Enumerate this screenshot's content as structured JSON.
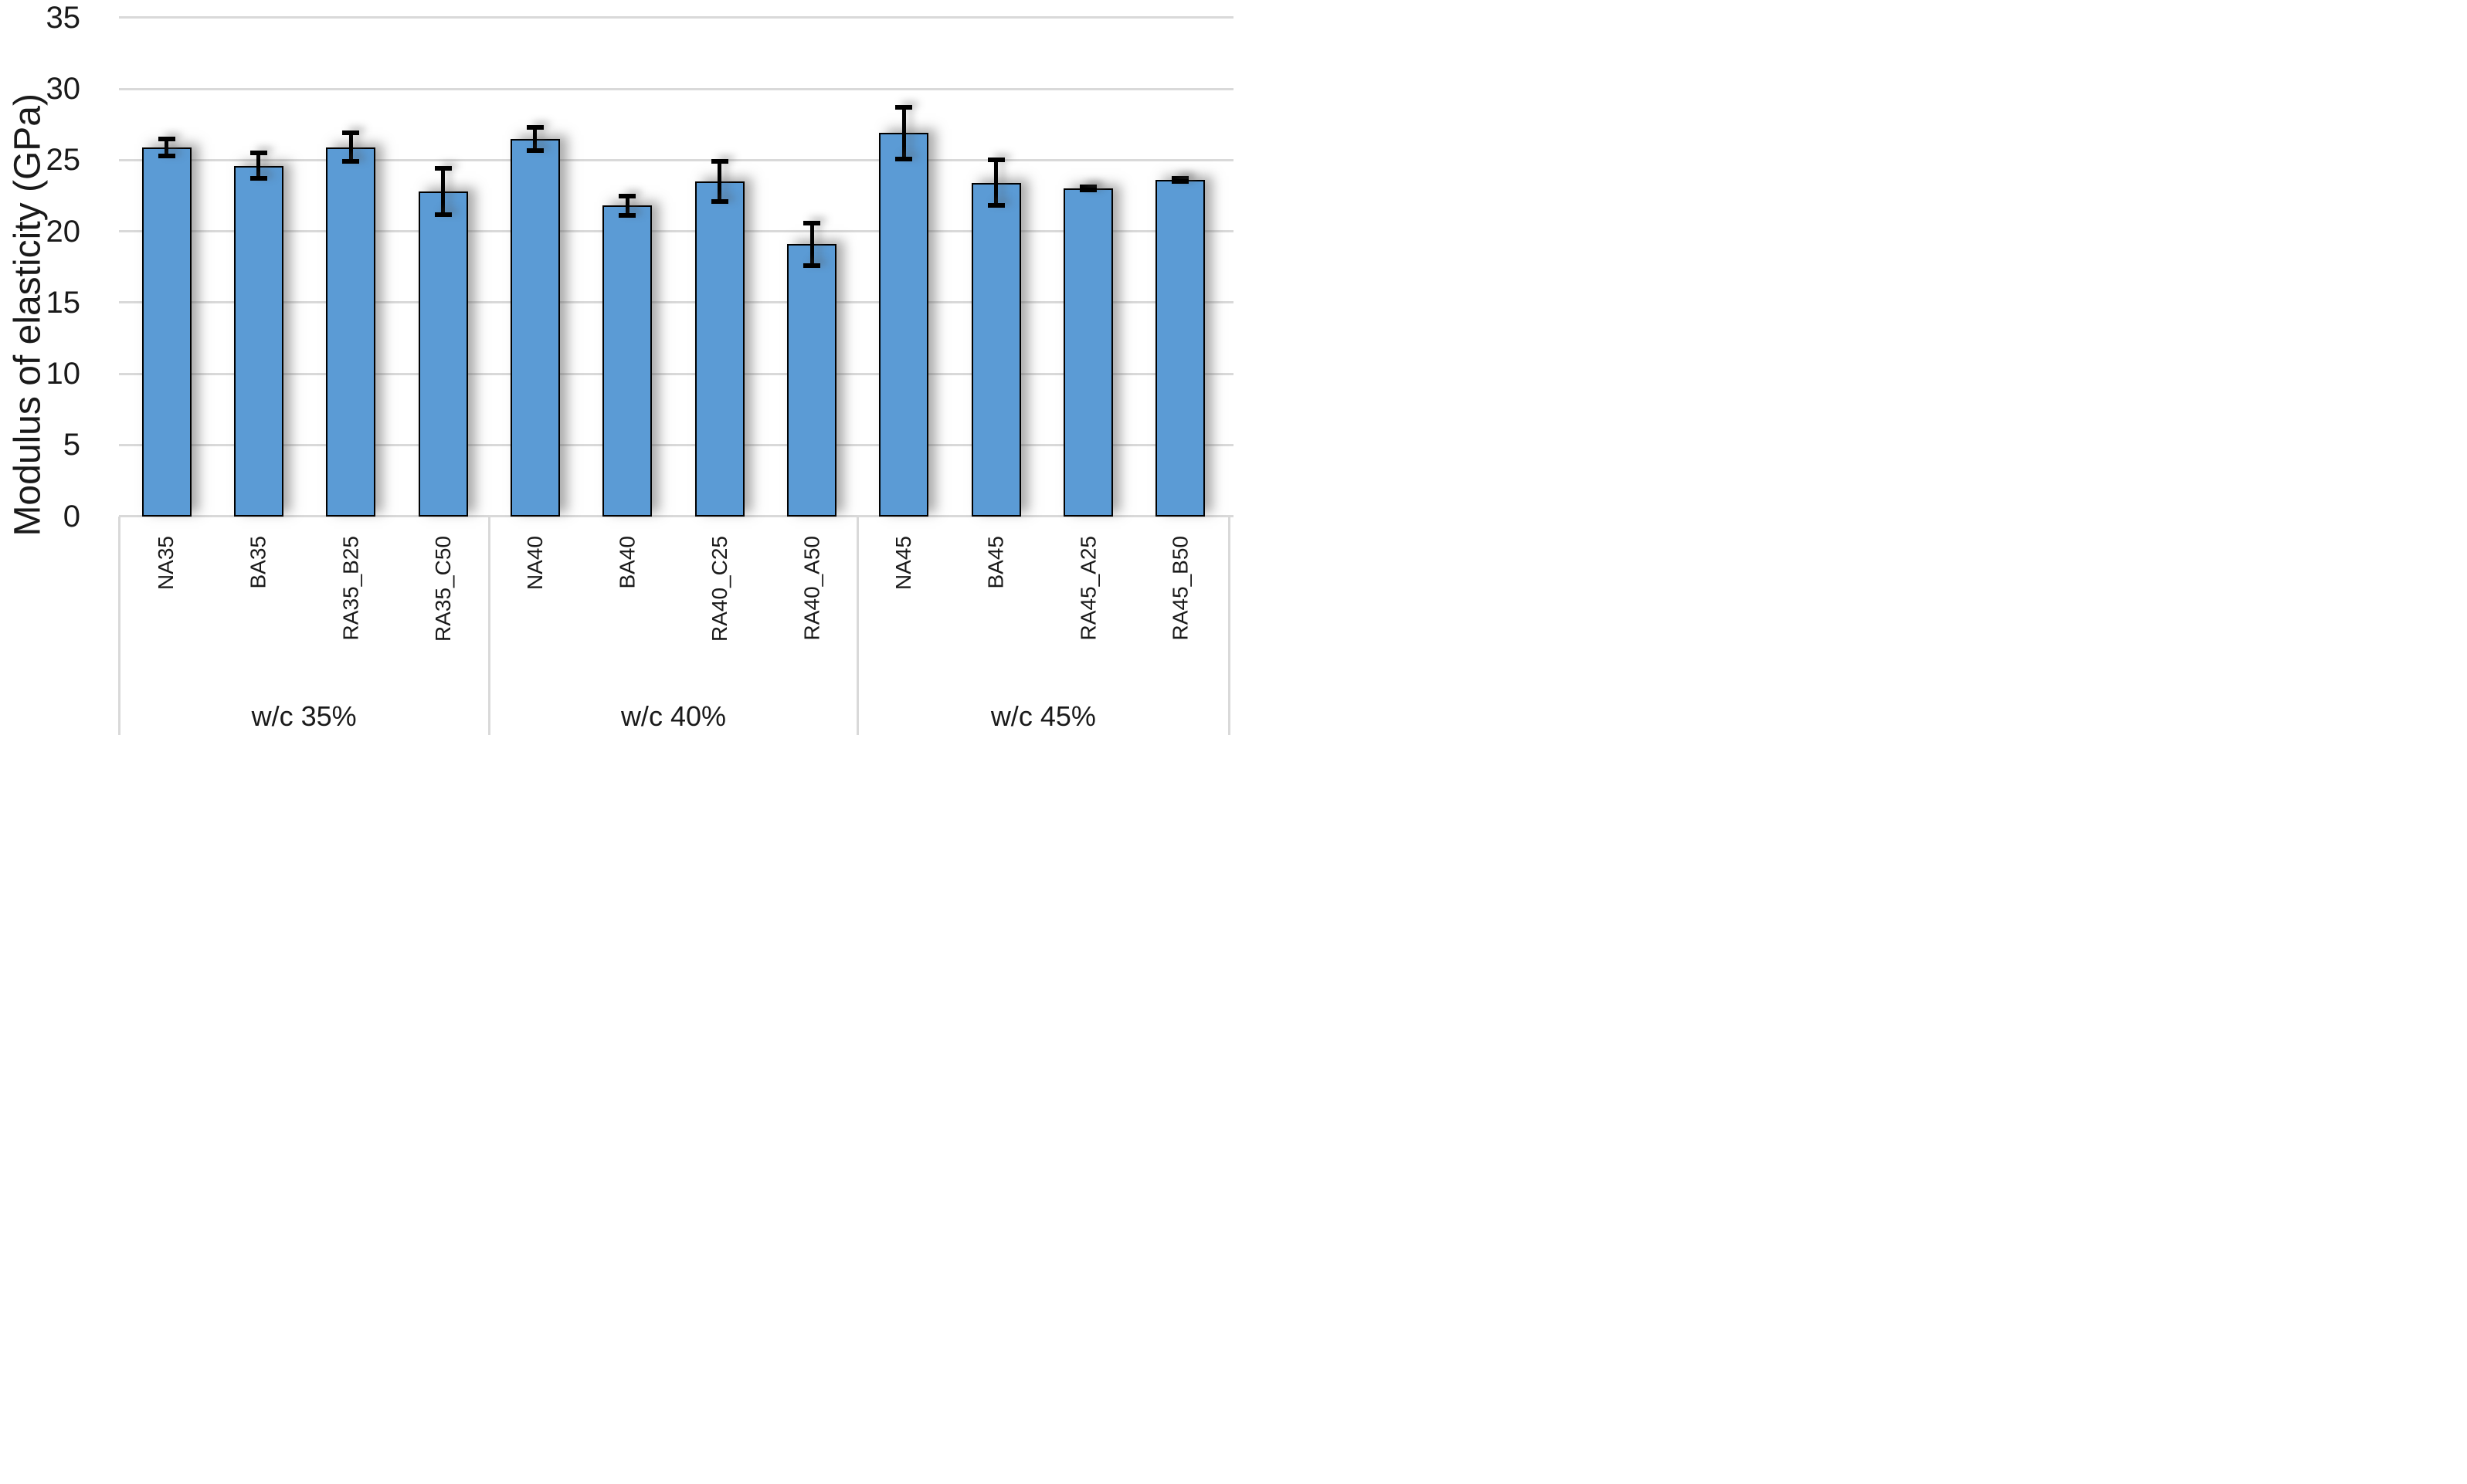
{
  "chart_data": {
    "type": "bar",
    "title": "",
    "xlabel": "",
    "ylabel": "Modulus of elasticity (GPa)",
    "ylim": [
      0,
      35
    ],
    "yticks": [
      0,
      5,
      10,
      15,
      20,
      25,
      30,
      35
    ],
    "grid": "horizontal gridlines on",
    "legend": "none",
    "error_bars": "symmetric, black caps",
    "bar_color": "#5B9BD5",
    "bar_border_color": "#000000",
    "gridline_color": "#D9D9D9",
    "text_color": "#1a1a1a",
    "groups": [
      {
        "label": "w/c 35%",
        "bars": [
          {
            "label": "NA35",
            "value": 25.9,
            "error": 0.6
          },
          {
            "label": "BA35",
            "value": 24.6,
            "error": 0.9
          },
          {
            "label": "RA35_B25",
            "value": 25.9,
            "error": 1.0
          },
          {
            "label": "RA35_C50",
            "value": 22.8,
            "error": 1.6
          }
        ]
      },
      {
        "label": "w/c 40%",
        "bars": [
          {
            "label": "NA40",
            "value": 26.5,
            "error": 0.8
          },
          {
            "label": "BA40",
            "value": 21.8,
            "error": 0.7
          },
          {
            "label": "RA40_C25",
            "value": 23.5,
            "error": 1.4
          },
          {
            "label": "RA40_A50",
            "value": 19.1,
            "error": 1.5
          }
        ]
      },
      {
        "label": "w/c 45%",
        "bars": [
          {
            "label": "NA45",
            "value": 26.9,
            "error": 1.8
          },
          {
            "label": "BA45",
            "value": 23.4,
            "error": 1.6
          },
          {
            "label": "RA45_A25",
            "value": 23.0,
            "error": 0.1
          },
          {
            "label": "RA45_B50",
            "value": 23.6,
            "error": 0.1
          }
        ]
      }
    ]
  }
}
